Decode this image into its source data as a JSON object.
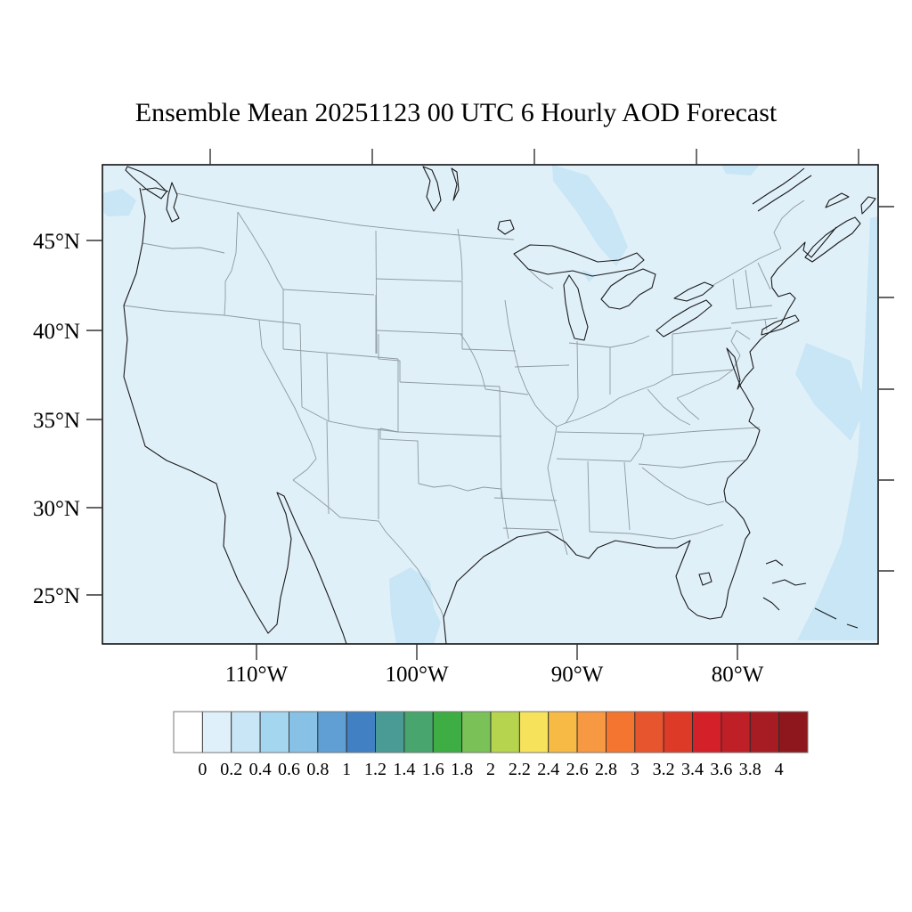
{
  "title": "Ensemble Mean 20251123 00 UTC 6 Hourly AOD Forecast",
  "axes": {
    "lat_labels": [
      "45°N",
      "40°N",
      "35°N",
      "30°N",
      "25°N"
    ],
    "lon_labels": [
      "110°W",
      "100°W",
      "90°W",
      "80°W"
    ]
  },
  "colorbar": {
    "tick_labels": [
      "0",
      "0.2",
      "0.4",
      "0.6",
      "0.8",
      "1",
      "1.2",
      "1.4",
      "1.6",
      "1.8",
      "2",
      "2.2",
      "2.4",
      "2.6",
      "2.8",
      "3",
      "3.2",
      "3.4",
      "3.6",
      "3.8",
      "4"
    ],
    "colors": [
      "#ffffff",
      "#e0f0fa",
      "#c8e6f5",
      "#a5d6f0",
      "#87c1e5",
      "#5f9fd3",
      "#4181c3",
      "#4a9a96",
      "#48a56d",
      "#3ead43",
      "#7ac258",
      "#b7d44e",
      "#f6e35b",
      "#f6ba45",
      "#f79843",
      "#f4752f",
      "#e6552d",
      "#dd3a28",
      "#d42028",
      "#bf1f26",
      "#a71c22",
      "#8d171c"
    ]
  },
  "map": {
    "background_color": "#e0f0f9",
    "patch_color": "#c8e6f5",
    "coast_color": "#1a1a1a",
    "state_line_color": "#8d9aa0",
    "frame_color": "#111111"
  },
  "chart_data": {
    "type": "heatmap",
    "title": "Ensemble Mean 20251123 00 UTC 6 Hourly AOD Forecast",
    "variable": "Aerosol Optical Depth (AOD), ensemble mean 6-hourly forecast",
    "region": "Contiguous United States with southern Canada, northern Mexico, western Atlantic and eastern Pacific",
    "x": {
      "label": "Longitude",
      "tick_labels": [
        "110°W",
        "100°W",
        "90°W",
        "80°W"
      ]
    },
    "y": {
      "label": "Latitude",
      "tick_labels": [
        "45°N",
        "40°N",
        "35°N",
        "30°N",
        "25°N"
      ]
    },
    "colorbar_levels": [
      0,
      0.2,
      0.4,
      0.6,
      0.8,
      1,
      1.2,
      1.4,
      1.6,
      1.8,
      2,
      2.2,
      2.4,
      2.6,
      2.8,
      3,
      3.2,
      3.4,
      3.6,
      3.8,
      4
    ],
    "legend_position": "bottom",
    "grid": false,
    "field_summary": "AOD is in the 0-0.2 bin over nearly the whole domain; small 0.2-0.4 patches appear off the Pacific Northwest coast, northwest of Lake Superior, along the top-center border, over the Rio Grande area of south Texas, and in a band over the western Atlantic along the right edge"
  }
}
